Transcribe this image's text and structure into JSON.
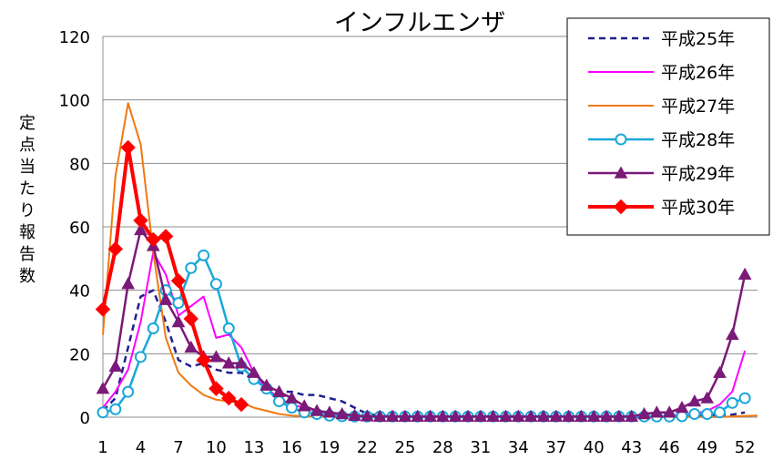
{
  "chart_data": {
    "type": "line",
    "title": "インフルエンザ",
    "ylabel": "定点当たり報告数",
    "xlabel": "",
    "ylim": [
      0,
      120
    ],
    "yticks": [
      0,
      20,
      40,
      60,
      80,
      100,
      120
    ],
    "xlim": [
      1,
      53
    ],
    "xticks": [
      1,
      4,
      7,
      10,
      13,
      16,
      19,
      22,
      25,
      28,
      31,
      34,
      37,
      40,
      43,
      46,
      49,
      52
    ],
    "grid": "horizontal",
    "legend_position": "top-right",
    "series": [
      {
        "name": "平成25年",
        "color": "#1f1f8f",
        "dash": "dashed",
        "marker": "none",
        "width": 2.5,
        "x": [
          1,
          2,
          3,
          4,
          5,
          6,
          7,
          8,
          9,
          10,
          11,
          12,
          13,
          14,
          15,
          16,
          17,
          18,
          19,
          20,
          21,
          22,
          23,
          24,
          25,
          26,
          27,
          28,
          29,
          30,
          31,
          32,
          33,
          34,
          35,
          36,
          37,
          38,
          39,
          40,
          41,
          42,
          43,
          44,
          45,
          46,
          47,
          48,
          49,
          50,
          51,
          52
        ],
        "values": [
          2,
          6,
          22,
          38,
          40,
          30,
          18,
          16,
          17,
          15,
          14,
          14,
          12,
          9,
          8,
          8,
          7,
          7,
          6,
          5,
          3,
          1,
          0.5,
          0.3,
          0.2,
          0.2,
          0.1,
          0.1,
          0.1,
          0.1,
          0.1,
          0.1,
          0.1,
          0.1,
          0.1,
          0.1,
          0.1,
          0.1,
          0.1,
          0.1,
          0.1,
          0.1,
          0.1,
          0.1,
          0.1,
          0.2,
          0.3,
          0.4,
          0.5,
          0.6,
          0.8,
          1.5
        ]
      },
      {
        "name": "平成26年",
        "color": "#ff00ff",
        "dash": "solid",
        "marker": "none",
        "width": 2,
        "x": [
          1,
          2,
          3,
          4,
          5,
          6,
          7,
          8,
          9,
          10,
          11,
          12,
          13,
          14,
          15,
          16,
          17,
          18,
          19,
          20,
          21,
          22,
          23,
          24,
          25,
          26,
          27,
          28,
          29,
          30,
          31,
          32,
          33,
          34,
          35,
          36,
          37,
          38,
          39,
          40,
          41,
          42,
          43,
          44,
          45,
          46,
          47,
          48,
          49,
          50,
          51,
          52
        ],
        "values": [
          3,
          8,
          15,
          30,
          52,
          45,
          32,
          35,
          38,
          25,
          26,
          22,
          14,
          9,
          6,
          4,
          3,
          2,
          1,
          0.5,
          0.3,
          0.2,
          0.2,
          0.1,
          0.1,
          0.1,
          0.1,
          0.1,
          0.1,
          0.1,
          0.1,
          0.1,
          0.1,
          0.1,
          0.1,
          0.1,
          0.1,
          0.1,
          0.1,
          0.1,
          0.1,
          0.1,
          0.1,
          0.2,
          0.3,
          0.5,
          0.8,
          1,
          2,
          4,
          8,
          21
        ]
      },
      {
        "name": "平成27年",
        "color": "#f07810",
        "dash": "solid",
        "marker": "none",
        "width": 2,
        "x": [
          1,
          2,
          3,
          4,
          5,
          6,
          7,
          8,
          9,
          10,
          11,
          12,
          13,
          14,
          15,
          16,
          17,
          18,
          19,
          20,
          21,
          22,
          23,
          24,
          25,
          26,
          27,
          28,
          29,
          30,
          31,
          32,
          33,
          34,
          35,
          36,
          37,
          38,
          39,
          40,
          41,
          42,
          43,
          44,
          45,
          46,
          47,
          48,
          49,
          50,
          51,
          52,
          53
        ],
        "values": [
          26,
          76,
          99,
          86,
          52,
          25,
          14,
          10,
          7,
          5.5,
          5,
          4.5,
          3,
          2,
          1,
          0.5,
          0.3,
          0.2,
          0.1,
          0.1,
          0.1,
          0.1,
          0.1,
          0.1,
          0.1,
          0.1,
          0.1,
          0.1,
          0.1,
          0.1,
          0.1,
          0.1,
          0.1,
          0.1,
          0.1,
          0.1,
          0.1,
          0.1,
          0.1,
          0.1,
          0.1,
          0.1,
          0.1,
          0.1,
          0.1,
          0.1,
          0.1,
          0.1,
          0.1,
          0.1,
          0.2,
          0.4,
          0.5
        ]
      },
      {
        "name": "平成28年",
        "color": "#1aa7d8",
        "dash": "solid",
        "marker": "circle",
        "width": 2.5,
        "x": [
          1,
          2,
          3,
          4,
          5,
          6,
          7,
          8,
          9,
          10,
          11,
          12,
          13,
          14,
          15,
          16,
          17,
          18,
          19,
          20,
          21,
          22,
          23,
          24,
          25,
          26,
          27,
          28,
          29,
          30,
          31,
          32,
          33,
          34,
          35,
          36,
          37,
          38,
          39,
          40,
          41,
          42,
          43,
          44,
          45,
          46,
          47,
          48,
          49,
          50,
          51,
          52
        ],
        "values": [
          1.5,
          2.5,
          8,
          19,
          28,
          40,
          36,
          47,
          51,
          42,
          28,
          16,
          12,
          9,
          5,
          3,
          1.5,
          1,
          0.5,
          0.3,
          0.2,
          0.2,
          0.2,
          0.2,
          0.2,
          0.2,
          0.2,
          0.2,
          0.2,
          0.2,
          0.2,
          0.2,
          0.2,
          0.2,
          0.2,
          0.2,
          0.2,
          0.2,
          0.2,
          0.2,
          0.2,
          0.2,
          0.2,
          0.2,
          0.2,
          0.2,
          0.3,
          1,
          1,
          1.5,
          4.5,
          6
        ]
      },
      {
        "name": "平成29年",
        "color": "#7b1a78",
        "dash": "solid",
        "marker": "triangle",
        "width": 2.5,
        "x": [
          1,
          2,
          3,
          4,
          5,
          6,
          7,
          8,
          9,
          10,
          11,
          12,
          13,
          14,
          15,
          16,
          17,
          18,
          19,
          20,
          21,
          22,
          23,
          24,
          25,
          26,
          27,
          28,
          29,
          30,
          31,
          32,
          33,
          34,
          35,
          36,
          37,
          38,
          39,
          40,
          41,
          42,
          43,
          44,
          45,
          46,
          47,
          48,
          49,
          50,
          51,
          52
        ],
        "values": [
          9,
          16,
          42,
          59,
          54,
          37,
          30,
          22,
          19,
          19,
          17,
          17,
          14,
          10,
          8,
          6,
          3.5,
          2,
          1.5,
          1,
          0.5,
          0.3,
          0.2,
          0.2,
          0.2,
          0.2,
          0.2,
          0.2,
          0.2,
          0.2,
          0.2,
          0.2,
          0.2,
          0.2,
          0.2,
          0.2,
          0.2,
          0.2,
          0.2,
          0.2,
          0.2,
          0.2,
          0.2,
          1,
          1.5,
          1.5,
          3,
          5,
          6,
          14,
          26,
          45
        ]
      },
      {
        "name": "平成30年",
        "color": "#ff0000",
        "dash": "solid",
        "marker": "diamond",
        "width": 4,
        "x": [
          1,
          2,
          3,
          4,
          5,
          6,
          7,
          8,
          9,
          10,
          11,
          12
        ],
        "values": [
          34,
          53,
          85,
          62,
          56,
          57,
          43,
          31,
          18,
          9,
          6,
          4
        ]
      }
    ]
  }
}
